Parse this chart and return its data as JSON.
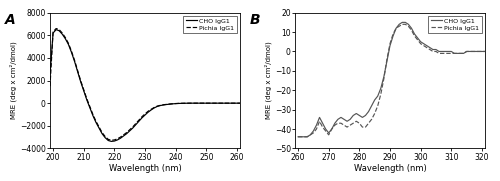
{
  "panel_A_label": "A",
  "panel_B_label": "B",
  "xlabel": "Wavelength (nm)",
  "ylabel": "MRE (deg x cm²/dmol)",
  "legend_CHO": "CHO IgG1",
  "legend_Pichia": "Pichia IgG1",
  "A_xlim": [
    199,
    261
  ],
  "A_ylim": [
    -4000,
    8000
  ],
  "A_xticks": [
    200,
    210,
    220,
    230,
    240,
    250,
    260
  ],
  "A_yticks": [
    -4000,
    -2000,
    0,
    2000,
    4000,
    6000,
    8000
  ],
  "B_xlim": [
    259,
    321
  ],
  "B_ylim": [
    -50,
    20
  ],
  "B_xticks": [
    260,
    270,
    280,
    290,
    300,
    310,
    320
  ],
  "B_yticks": [
    -50,
    -40,
    -30,
    -20,
    -10,
    0,
    10,
    20
  ],
  "A_CHO_x": [
    199,
    200,
    201,
    202,
    203,
    204,
    205,
    206,
    207,
    208,
    209,
    210,
    211,
    212,
    213,
    214,
    215,
    216,
    217,
    218,
    219,
    220,
    221,
    222,
    223,
    224,
    225,
    226,
    227,
    228,
    229,
    230,
    231,
    232,
    233,
    234,
    235,
    236,
    237,
    238,
    239,
    240,
    241,
    242,
    243,
    244,
    245,
    246,
    247,
    248,
    249,
    250,
    252,
    254,
    256,
    258,
    260,
    261
  ],
  "A_CHO_y": [
    2500,
    6200,
    6500,
    6400,
    6100,
    5700,
    5200,
    4500,
    3700,
    2800,
    1900,
    1100,
    300,
    -400,
    -1100,
    -1700,
    -2200,
    -2700,
    -3050,
    -3300,
    -3380,
    -3350,
    -3250,
    -3100,
    -2900,
    -2700,
    -2450,
    -2200,
    -1900,
    -1600,
    -1300,
    -1050,
    -800,
    -600,
    -420,
    -290,
    -210,
    -160,
    -120,
    -90,
    -60,
    -40,
    -25,
    -15,
    -8,
    -4,
    0,
    0,
    0,
    0,
    0,
    0,
    0,
    0,
    0,
    0,
    0,
    0
  ],
  "A_Pichia_x": [
    199,
    200,
    201,
    202,
    203,
    204,
    205,
    206,
    207,
    208,
    209,
    210,
    211,
    212,
    213,
    214,
    215,
    216,
    217,
    218,
    219,
    220,
    221,
    222,
    223,
    224,
    225,
    226,
    227,
    228,
    229,
    230,
    231,
    232,
    233,
    234,
    235,
    236,
    237,
    238,
    239,
    240,
    241,
    242,
    243,
    244,
    245,
    246,
    247,
    248,
    249,
    250,
    252,
    254,
    256,
    258,
    260,
    261
  ],
  "A_Pichia_y": [
    1500,
    6300,
    6600,
    6500,
    6200,
    5800,
    5300,
    4600,
    3800,
    2900,
    2000,
    1200,
    400,
    -300,
    -1000,
    -1600,
    -2100,
    -2600,
    -2950,
    -3200,
    -3280,
    -3250,
    -3150,
    -3000,
    -2800,
    -2600,
    -2350,
    -2100,
    -1800,
    -1500,
    -1200,
    -950,
    -720,
    -540,
    -380,
    -260,
    -190,
    -140,
    -105,
    -75,
    -50,
    -32,
    -20,
    -12,
    -6,
    -3,
    0,
    0,
    0,
    0,
    0,
    0,
    0,
    0,
    0,
    0,
    0,
    0
  ],
  "B_CHO_x": [
    260,
    261,
    262,
    263,
    264,
    265,
    266,
    267,
    268,
    269,
    270,
    271,
    272,
    273,
    274,
    275,
    276,
    277,
    278,
    279,
    280,
    281,
    282,
    283,
    284,
    285,
    286,
    287,
    288,
    289,
    290,
    291,
    292,
    293,
    294,
    295,
    296,
    297,
    298,
    299,
    300,
    301,
    302,
    303,
    304,
    305,
    306,
    307,
    308,
    309,
    310,
    311,
    312,
    313,
    314,
    315,
    316,
    317,
    318,
    319,
    320,
    321
  ],
  "B_CHO_y": [
    -44,
    -44,
    -44,
    -44,
    -43,
    -41,
    -38,
    -34,
    -37,
    -40,
    -42,
    -40,
    -37,
    -35,
    -34,
    -35,
    -36,
    -35,
    -33,
    -32,
    -33,
    -34,
    -33,
    -31,
    -28,
    -25,
    -23,
    -19,
    -13,
    -5,
    3,
    8,
    12,
    14,
    15,
    15,
    14,
    12,
    9,
    7,
    5,
    4,
    3,
    2,
    1,
    1,
    0,
    0,
    0,
    0,
    0,
    -1,
    -1,
    -1,
    -1,
    0,
    0,
    0,
    0,
    0,
    0,
    0
  ],
  "B_Pichia_x": [
    260,
    261,
    262,
    263,
    264,
    265,
    266,
    267,
    268,
    269,
    270,
    271,
    272,
    273,
    274,
    275,
    276,
    277,
    278,
    279,
    280,
    281,
    282,
    283,
    284,
    285,
    286,
    287,
    288,
    289,
    290,
    291,
    292,
    293,
    294,
    295,
    296,
    297,
    298,
    299,
    300,
    301,
    302,
    303,
    304,
    305,
    306,
    307,
    308,
    309,
    310,
    311,
    312,
    313,
    314,
    315,
    316,
    317,
    318,
    319,
    320,
    321
  ],
  "B_Pichia_y": [
    -44,
    -44,
    -44,
    -44,
    -43,
    -42,
    -40,
    -36,
    -39,
    -41,
    -43,
    -40,
    -38,
    -37,
    -37,
    -38,
    -39,
    -38,
    -37,
    -36,
    -37,
    -39,
    -39,
    -37,
    -35,
    -32,
    -28,
    -22,
    -14,
    -4,
    4,
    9,
    12,
    13,
    14,
    14,
    13,
    11,
    8,
    6,
    4,
    3,
    2,
    1,
    0,
    0,
    -1,
    -1,
    -1,
    -1,
    -1,
    -1,
    -1,
    -1,
    -1,
    0,
    0,
    0,
    0,
    0,
    0,
    0
  ],
  "line_color_A": "black",
  "line_color_B": "#555555",
  "linewidth": 0.85
}
